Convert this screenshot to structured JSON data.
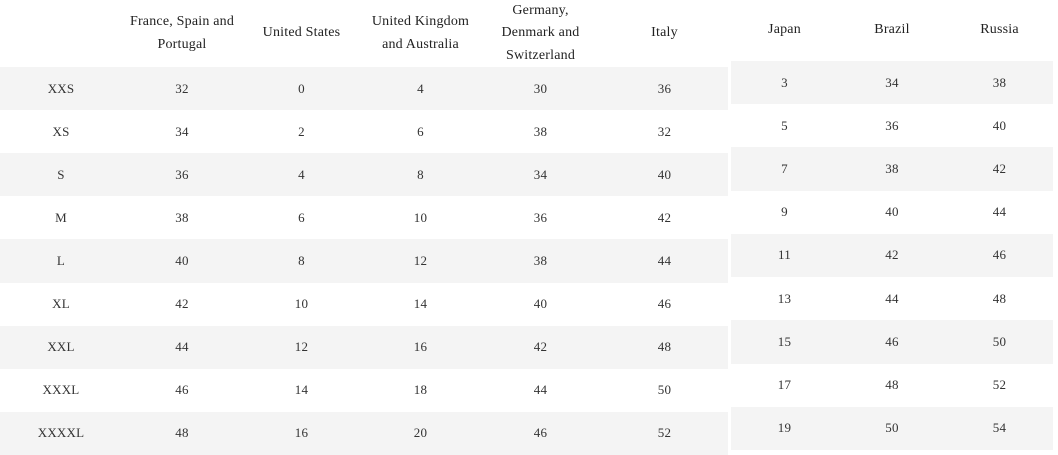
{
  "chart_data": {
    "type": "table",
    "title": "",
    "columns": [
      "",
      "France, Spain and Portugal",
      "United States",
      "United Kingdom and Australia",
      "Germany, Denmark and Switzerland",
      "Italy",
      "Japan",
      "Brazil",
      "Russia"
    ],
    "rows": [
      [
        "XXS",
        "32",
        "0",
        "4",
        "30",
        "36",
        "3",
        "34",
        "38"
      ],
      [
        "XS",
        "34",
        "2",
        "6",
        "38",
        "32",
        "5",
        "36",
        "40"
      ],
      [
        "S",
        "36",
        "4",
        "8",
        "34",
        "40",
        "7",
        "38",
        "42"
      ],
      [
        "M",
        "38",
        "6",
        "10",
        "36",
        "42",
        "9",
        "40",
        "44"
      ],
      [
        "L",
        "40",
        "8",
        "12",
        "38",
        "44",
        "11",
        "42",
        "46"
      ],
      [
        "XL",
        "42",
        "10",
        "14",
        "40",
        "46",
        "13",
        "44",
        "48"
      ],
      [
        "XXL",
        "44",
        "12",
        "16",
        "42",
        "48",
        "15",
        "46",
        "50"
      ],
      [
        "XXXL",
        "46",
        "14",
        "18",
        "44",
        "50",
        "17",
        "48",
        "52"
      ],
      [
        "XXXXL",
        "48",
        "16",
        "20",
        "46",
        "52",
        "19",
        "50",
        "54"
      ]
    ],
    "layout_hint": "split into two side-by-side tables: columns 0-5 in left block, columns 6-8 in right block; zebra striping on odd body rows; no grid lines; right block offset slightly up"
  },
  "layout_meta": {
    "left_block_columns": [
      0,
      1,
      2,
      3,
      4,
      5
    ],
    "right_block_columns": [
      6,
      7,
      8
    ]
  },
  "colors": {
    "stripe": "#f4f4f4",
    "row_white": "#ffffff",
    "body_text": "#333333",
    "header_text": "#222222",
    "background": "#ffffff"
  }
}
